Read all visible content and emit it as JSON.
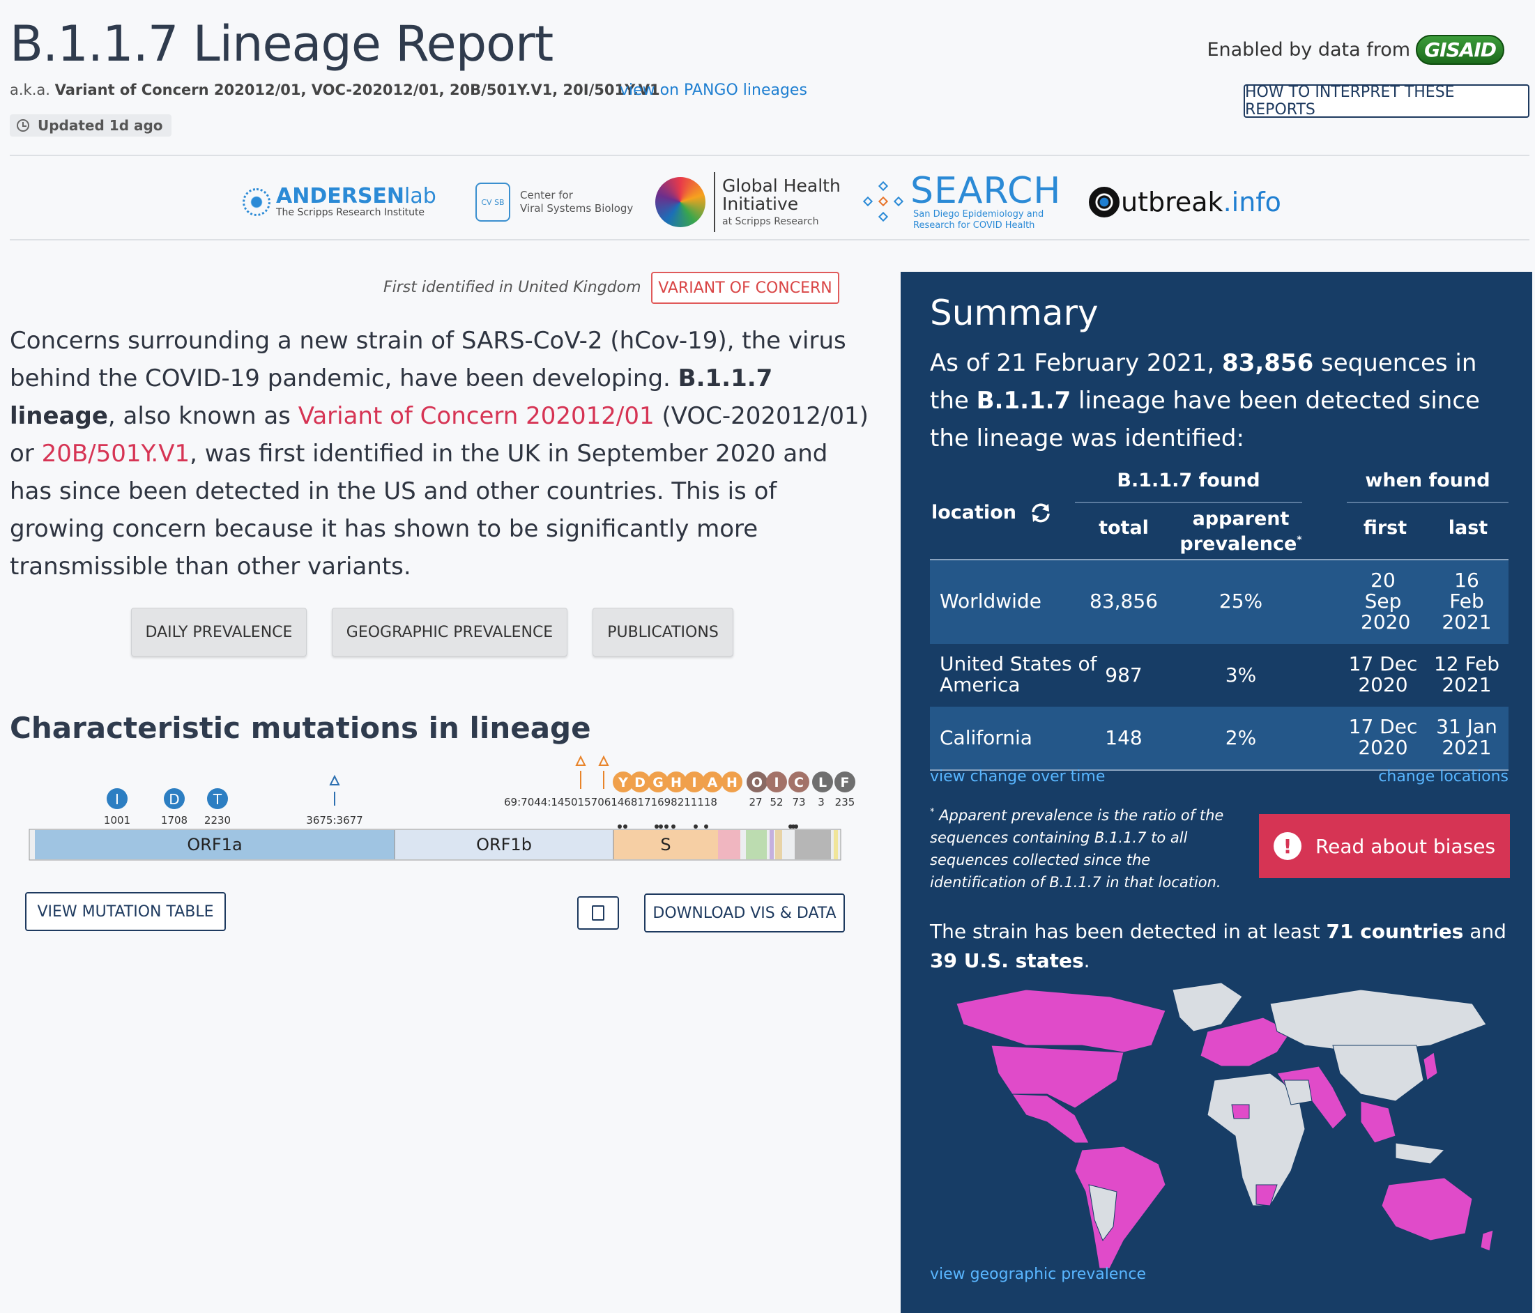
{
  "header": {
    "title": "B.1.1.7 Lineage Report",
    "aka_prefix": "a.k.a.",
    "aka_names": "Variant of Concern 202012/01, VOC-202012/01, 20B/501Y.V1, 20I/501Y.V1",
    "pango_link": "view on PANGO lineages",
    "updated": "Updated 1d ago",
    "enabled_by": "Enabled by data from",
    "gisaid": "GISAID",
    "how_to_button": "HOW TO INTERPRET THESE REPORTS"
  },
  "logos": {
    "andersen_bold": "ANDERSEN",
    "andersen_light": "lab",
    "andersen_sub": "The Scripps Research Institute",
    "cvsb_badge": "CV SB",
    "cvsb_line1": "Center for",
    "cvsb_line2": "Viral Systems Biology",
    "ghi_line1": "Global Health",
    "ghi_line2": "Initiative",
    "ghi_sub": "at Scripps Research",
    "search_title": "SEARCH",
    "search_sub1": "San Diego Epidemiology and",
    "search_sub2": "Research for COVID Health",
    "outbreak_a": "utbreak",
    "outbreak_b": ".info"
  },
  "intro": {
    "first_identified": "First identified in United Kingdom",
    "badge": "VARIANT OF CONCERN",
    "p1": "Concerns surrounding a new strain of SARS-CoV-2 (hCov-19), the virus behind the COVID-19 pandemic, have been developing. ",
    "lineage_bold": "B.1.1.7 lineage",
    "p2": ", also known as ",
    "voc_link": "Variant of Concern 202012/01",
    "p3": " (VOC-202012/01) or ",
    "alt_link": "20B/501Y.V1",
    "p4": ", was first identified in the UK in September 2020 and has since been detected in the US and other countries. This is of growing concern because it has shown to be significantly more transmissible than other variants."
  },
  "nav_buttons": {
    "daily": "DAILY PREVALENCE",
    "geographic": "GEOGRAPHIC PREVALENCE",
    "publications": "PUBLICATIONS"
  },
  "mutations": {
    "heading": "Characteristic mutations in lineage",
    "orf1a_markers": [
      {
        "letter": "I",
        "pos": "1001"
      },
      {
        "letter": "D",
        "pos": "1708"
      },
      {
        "letter": "T",
        "pos": "2230"
      }
    ],
    "deletion_label": "3675:3677",
    "s_markers": [
      "Y",
      "D",
      "G",
      "H",
      "I",
      "A",
      "H",
      "O",
      "I",
      "C",
      "L",
      "F"
    ],
    "s_marker_colors": [
      "#f0a04b",
      "#f0a04b",
      "#f0a04b",
      "#f0a04b",
      "#f0a04b",
      "#f0a04b",
      "#f0a04b",
      "#8a6a63",
      "#a37268",
      "#a37268",
      "#6f6f6f",
      "#6f6f6f"
    ],
    "s_positions": "69:7044:1450157061468171698211118",
    "tail_positions": [
      "27",
      "52",
      "73",
      "3",
      "235"
    ],
    "genes": [
      "ORF1a",
      "ORF1b",
      "S"
    ],
    "view_table": "VIEW MUTATION TABLE",
    "download": "DOWNLOAD VIS & DATA"
  },
  "summary": {
    "title": "Summary",
    "as_of_prefix": "As of 21 February 2021, ",
    "count": "83,856",
    "as_of_mid": " sequences in the ",
    "lineage": "B.1.1.7",
    "as_of_suffix": " lineage have been detected since the lineage was identified:",
    "col_location": "location",
    "col_found": "B.1.1.7 found",
    "col_when": "when found",
    "col_total": "total",
    "col_prev": "apparent prevalence",
    "col_prev_star": "*",
    "col_first": "first",
    "col_last": "last",
    "rows": [
      {
        "location": "Worldwide",
        "total": "83,856",
        "prevalence": "25%",
        "first": "20 Sep 2020",
        "last": "16 Feb 2021"
      },
      {
        "location": "United States of America",
        "total": "987",
        "prevalence": "3%",
        "first": "17 Dec 2020",
        "last": "12 Feb 2021"
      },
      {
        "location": "California",
        "total": "148",
        "prevalence": "2%",
        "first": "17 Dec 2020",
        "last": "31 Jan 2021"
      }
    ],
    "view_change": "view change over time",
    "change_locations": "change locations",
    "footnote_star": "*",
    "footnote": "Apparent prevalence is the ratio of the sequences containing B.1.1.7 to all sequences collected since the identification of B.1.1.7 in that location.",
    "biases_button": "Read about biases",
    "detected_prefix": "The strain has been detected in at least ",
    "countries": "71 countries",
    "detected_mid": " and ",
    "states": "39 U.S. states",
    "detected_suffix": ".",
    "map_link": "view geographic prevalence",
    "map_detected_color": "#e04bc9",
    "map_other_color": "#d9dde2"
  }
}
